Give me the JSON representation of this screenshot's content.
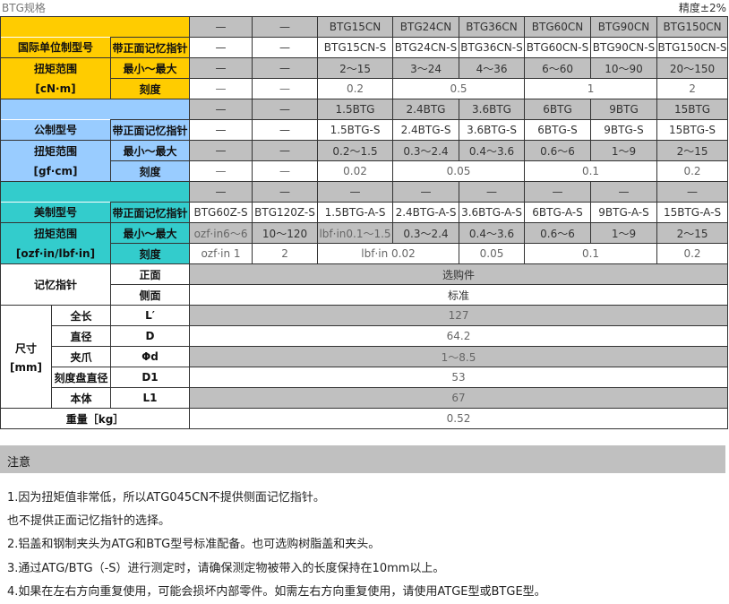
{
  "header": {
    "title": "BTG规格",
    "accuracy": "精度±2%"
  },
  "labels": {
    "front_pointer": "带正面记忆指针",
    "torque": "扭矩范围",
    "minmax": "最小～最大",
    "scale": "刻度"
  },
  "si": {
    "label": "国际单位制型号",
    "unit": "[cN·m]",
    "models": [
      "—",
      "—",
      "BTG15CN",
      "BTG24CN",
      "BTG36CN",
      "BTG60CN",
      "BTG90CN",
      "BTG150CN"
    ],
    "models_s": [
      "—",
      "—",
      "BTG15CN-S",
      "BTG24CN-S",
      "BTG36CN-S",
      "BTG60CN-S",
      "BTG90CN-S",
      "BTG150CN-S"
    ],
    "ranges": [
      "—",
      "—",
      "2～15",
      "3～24",
      "4～36",
      "6～60",
      "10～90",
      "20～150"
    ],
    "scales": [
      "—",
      "—",
      "0.2",
      "0.5",
      "1",
      "2"
    ]
  },
  "metric": {
    "label": "公制型号",
    "unit": "[gf·cm]",
    "models": [
      "—",
      "—",
      "1.5BTG",
      "2.4BTG",
      "3.6BTG",
      "6BTG",
      "9BTG",
      "15BTG"
    ],
    "models_s": [
      "—",
      "—",
      "1.5BTG-S",
      "2.4BTG-S",
      "3.6BTG-S",
      "6BTG-S",
      "9BTG-S",
      "15BTG-S"
    ],
    "ranges": [
      "—",
      "—",
      "0.2～1.5",
      "0.3～2.4",
      "0.4～3.6",
      "0.6～6",
      "1～9",
      "2～15"
    ],
    "scales": [
      "—",
      "—",
      "0.02",
      "0.05",
      "0.1",
      "0.2"
    ]
  },
  "us": {
    "label": "美制型号",
    "unit": "[ozf·in/lbf·in]",
    "models": [
      "—",
      "—",
      "—",
      "—",
      "—",
      "—",
      "—",
      "—"
    ],
    "models_s": [
      "BTG60Z-S",
      "BTG120Z-S",
      "1.5BTG-A-S",
      "2.4BTG-A-S",
      "3.6BTG-A-S",
      "6BTG-A-S",
      "9BTG-A-S",
      "15BTG-A-S"
    ],
    "ranges": [
      "ozf·in6～6",
      "10～120",
      "lbf·in0.1～1.5",
      "0.3～2.4",
      "0.4～3.6",
      "0.6～6",
      "1～9",
      "2～15"
    ],
    "scales": [
      "ozf·in 1",
      "2",
      "lbf·in 0.02",
      "0.05",
      "0.1",
      "0.2"
    ]
  },
  "memory": {
    "label": "记忆指针",
    "front": "正面",
    "front_value": "选购件",
    "side": "侧面",
    "side_value": "标准"
  },
  "dimensions": {
    "label": "尺寸",
    "unit": "[mm]",
    "rows": [
      {
        "name": "全长",
        "symbol": "L′",
        "value": "127"
      },
      {
        "name": "直径",
        "symbol": "D",
        "value": "64.2"
      },
      {
        "name": "夹爪",
        "symbol": "Φd",
        "value": "1～8.5"
      },
      {
        "name": "刻度盘直径",
        "symbol": "D1",
        "value": "53"
      },
      {
        "name": "本体",
        "symbol": "L1",
        "value": "67"
      }
    ]
  },
  "weight": {
    "label": "重量［kg］",
    "value": "0.52"
  },
  "notes": {
    "title": "注意",
    "items": [
      "1.因为扭矩值非常低，所以ATG045CN不提供侧面记忆指针。",
      "也不提供正面记忆指针的选择。",
      "2.铝盖和钢制夹头为ATG和BTG型号标准配备。也可选购树脂盖和夹头。",
      "3.通过ATG/BTG（-S）进行测定时，请确保测定物被带入的长度保持在10mm以上。",
      "4.如果在左右方向重复使用，可能会损坏内部零件。如需左右方向重复使用，请使用ATGE型或BTGE型。"
    ]
  }
}
